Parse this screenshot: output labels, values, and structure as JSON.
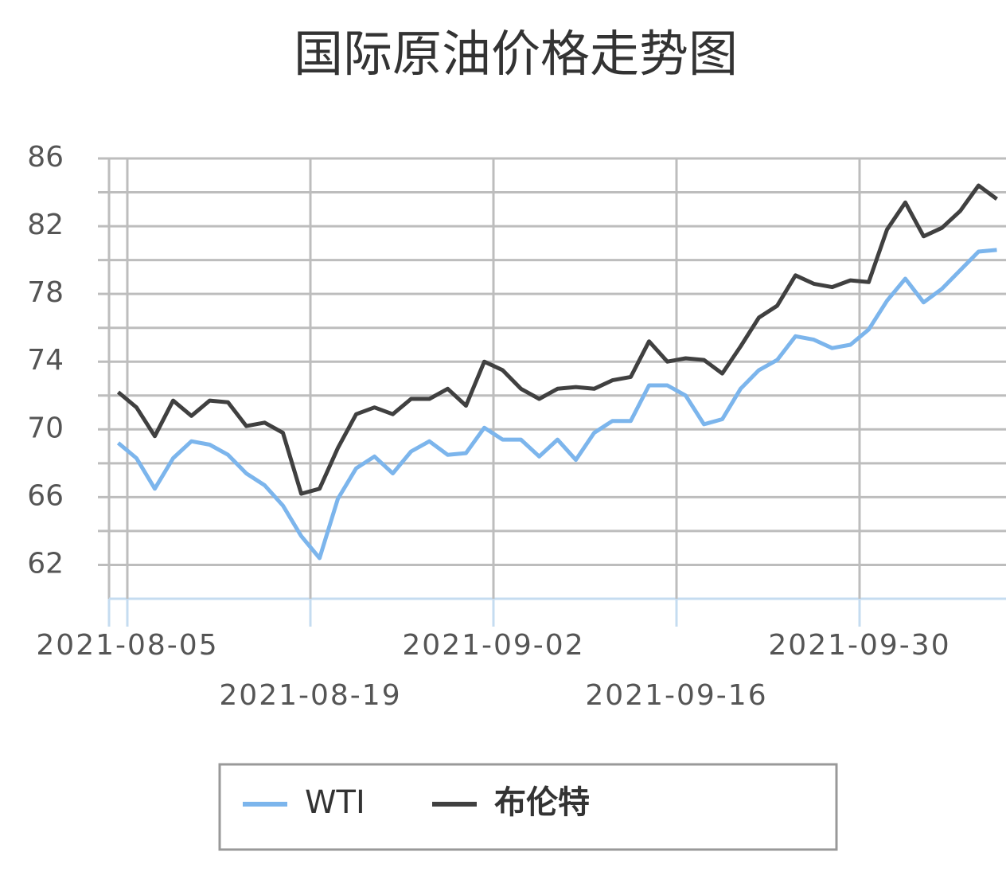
{
  "chart_data": {
    "type": "line",
    "title": "国际原油价格走势图",
    "categories": [
      null,
      "2021-08-05",
      null,
      null,
      null,
      null,
      null,
      null,
      null,
      null,
      null,
      "2021-08-19",
      null,
      null,
      null,
      null,
      null,
      null,
      null,
      null,
      null,
      "2021-09-02",
      null,
      null,
      null,
      null,
      null,
      null,
      null,
      null,
      null,
      "2021-09-16",
      null,
      null,
      null,
      null,
      null,
      null,
      null,
      null,
      null,
      "2021-09-30",
      null,
      null,
      null,
      null,
      null,
      null,
      null
    ],
    "series": [
      {
        "name": "WTI",
        "color": "#7cb5ec",
        "values": [
          69.2,
          68.3,
          66.5,
          68.3,
          69.3,
          69.1,
          68.5,
          67.4,
          66.7,
          65.5,
          63.7,
          62.4,
          65.9,
          67.7,
          68.4,
          67.4,
          68.7,
          69.3,
          68.5,
          68.6,
          70.1,
          69.4,
          69.4,
          68.4,
          69.4,
          68.2,
          69.8,
          70.5,
          70.5,
          72.6,
          72.6,
          72.0,
          70.3,
          70.6,
          72.4,
          73.5,
          74.1,
          75.5,
          75.3,
          74.8,
          75.0,
          75.9,
          77.6,
          78.9,
          77.5,
          78.3,
          79.4,
          80.5,
          80.6
        ]
      },
      {
        "name": "布伦特",
        "color": "#404040",
        "values": [
          72.2,
          71.3,
          69.6,
          71.7,
          70.8,
          71.7,
          71.6,
          70.2,
          70.4,
          69.8,
          66.2,
          66.5,
          68.9,
          70.9,
          71.3,
          70.9,
          71.8,
          71.8,
          72.4,
          71.4,
          74.0,
          73.5,
          72.4,
          71.8,
          72.4,
          72.5,
          72.4,
          72.9,
          73.1,
          75.2,
          74.0,
          74.2,
          74.1,
          73.3,
          74.9,
          76.6,
          77.3,
          79.1,
          78.6,
          78.4,
          78.8,
          78.7,
          81.8,
          83.4,
          81.4,
          81.9,
          82.9,
          84.4,
          83.6
        ]
      }
    ],
    "ylim": [
      60,
      86
    ],
    "yticks": [
      62,
      66,
      70,
      74,
      78,
      82,
      86
    ],
    "minor_yticks": [
      60,
      64,
      68,
      72,
      76,
      80,
      84
    ],
    "grid": true,
    "legend": "bottom"
  }
}
